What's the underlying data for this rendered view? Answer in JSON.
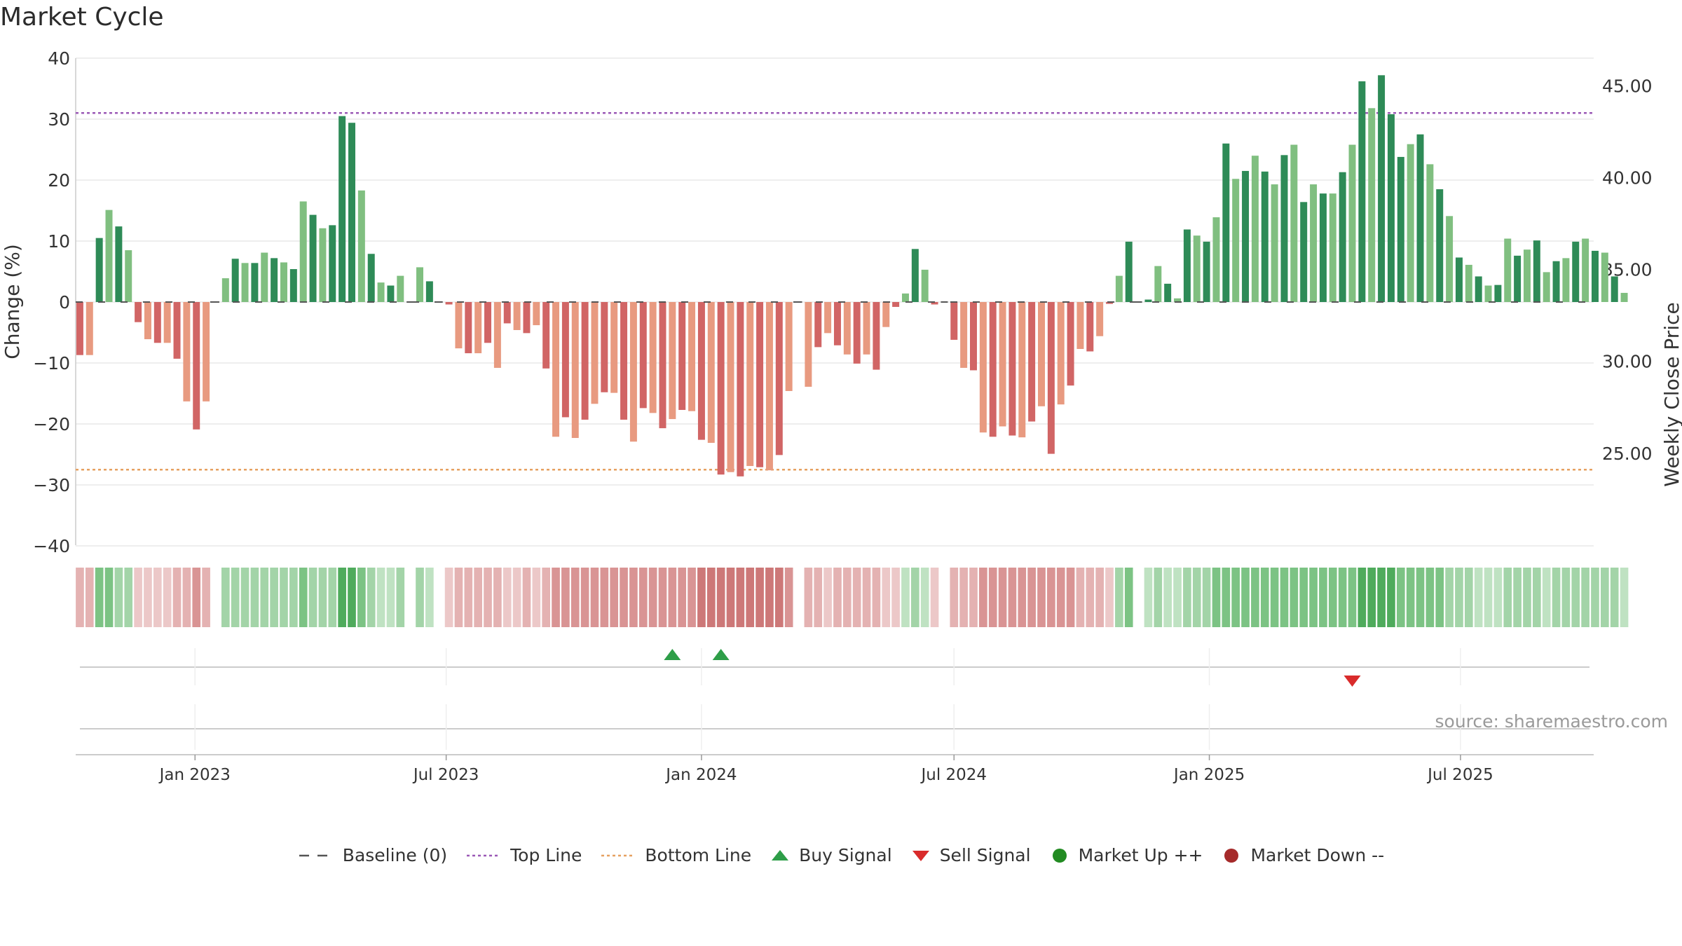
{
  "chart_data": {
    "type": "bar",
    "title": "Market Cycle",
    "source": "source: sharemaestro.com",
    "ylabel": "Change (%)",
    "ylabel_right": "Weekly Close Price",
    "ylim": [
      -40,
      40
    ],
    "yticks": [
      40,
      30,
      20,
      10,
      0,
      -10,
      -20,
      -30,
      -40
    ],
    "ytick_labels": [
      "40",
      "30",
      "20",
      "10",
      "0",
      "−10",
      "−20",
      "−30",
      "−40"
    ],
    "ylim_right": [
      20.0,
      46.5
    ],
    "yticks_right": [
      45.0,
      40.0,
      35.0,
      30.0,
      25.0
    ],
    "ytick_labels_right": [
      "45.00",
      "40.00",
      "35.00",
      "30.00",
      "25.00"
    ],
    "x_range": [
      "2022-10-07",
      "2025-10-05"
    ],
    "xticks": [
      "2023-01-01",
      "2023-07-01",
      "2024-01-01",
      "2024-07-01",
      "2025-01-01",
      "2025-07-01"
    ],
    "xtick_labels": [
      "Jan 2023",
      "Jul 2023",
      "Jan 2024",
      "Jul 2024",
      "Jan 2025",
      "Jul 2025"
    ],
    "start_week": "2022-10-10",
    "top_line": 31,
    "bottom_line": -27.5,
    "values": [
      -8.7,
      -8.7,
      10.5,
      15.1,
      12.4,
      8.5,
      -3.3,
      -6.1,
      -6.7,
      -6.7,
      -9.3,
      -16.3,
      -20.9,
      -16.3,
      0,
      3.9,
      7.1,
      6.4,
      6.4,
      8.1,
      7.2,
      6.5,
      5.4,
      16.5,
      14.3,
      12.1,
      12.6,
      30.5,
      29.4,
      18.3,
      7.9,
      3.2,
      2.7,
      4.3,
      0,
      5.7,
      3.4,
      0,
      -0.4,
      -7.6,
      -8.4,
      -8.4,
      -6.7,
      -10.8,
      -3.5,
      -4.6,
      -5.1,
      -3.8,
      -10.9,
      -22.1,
      -18.9,
      -22.3,
      -19.3,
      -16.7,
      -14.8,
      -14.9,
      -19.3,
      -22.9,
      -17.4,
      -18.2,
      -20.7,
      -19.2,
      -17.7,
      -17.9,
      -22.6,
      -23.1,
      -28.3,
      -27.9,
      -28.6,
      -26.9,
      -27.1,
      -27.6,
      -25.1,
      -14.6,
      0,
      -13.9,
      -7.4,
      -5.1,
      -7.1,
      -8.6,
      -10.1,
      -8.6,
      -11.1,
      -4.1,
      -0.8,
      1.4,
      8.7,
      5.3,
      -0.4,
      0,
      -6.2,
      -10.8,
      -11.2,
      -21.4,
      -22.1,
      -20.4,
      -21.9,
      -22.2,
      -19.6,
      -17.1,
      -24.9,
      -16.8,
      -13.7,
      -7.7,
      -8.1,
      -5.6,
      -0.3,
      4.3,
      9.9,
      0,
      0.4,
      5.9,
      3.0,
      0.6,
      11.9,
      10.9,
      9.9,
      13.9,
      26.0,
      20.2,
      21.5,
      24.0,
      21.4,
      19.3,
      24.1,
      25.8,
      16.4,
      19.3,
      17.8,
      17.8,
      21.3,
      25.8,
      36.2,
      31.8,
      37.2,
      30.8,
      23.8,
      25.9,
      27.5,
      22.6,
      18.5,
      14.1,
      7.3,
      6.1,
      4.2,
      2.7,
      2.8,
      10.4,
      7.6,
      8.6,
      10.1,
      4.9,
      6.7,
      7.2,
      9.9,
      10.4,
      8.4,
      8.1,
      4.2,
      1.5
    ],
    "market_strength": [
      -2,
      -2,
      3,
      3,
      2,
      2,
      -1,
      -1,
      -1,
      -1,
      -2,
      -2,
      -3,
      -2,
      0,
      2,
      2,
      2,
      2,
      2,
      2,
      2,
      2,
      3,
      2,
      2,
      2,
      4,
      4,
      3,
      2,
      1,
      1,
      2,
      0,
      2,
      1,
      0,
      -1,
      -2,
      -2,
      -2,
      -2,
      -2,
      -1,
      -1,
      -2,
      -1,
      -2,
      -3,
      -3,
      -3,
      -3,
      -3,
      -3,
      -3,
      -3,
      -3,
      -3,
      -3,
      -3,
      -3,
      -3,
      -3,
      -4,
      -4,
      -4,
      -4,
      -4,
      -4,
      -4,
      -4,
      -4,
      -3,
      0,
      -2,
      -2,
      -1,
      -2,
      -2,
      -2,
      -2,
      -2,
      -1,
      -1,
      1,
      2,
      1,
      -1,
      0,
      -2,
      -2,
      -2,
      -3,
      -3,
      -3,
      -3,
      -3,
      -3,
      -3,
      -3,
      -3,
      -3,
      -2,
      -2,
      -2,
      -1,
      2,
      3,
      0,
      1,
      2,
      1,
      1,
      2,
      2,
      2,
      3,
      3,
      3,
      3,
      3,
      3,
      3,
      3,
      3,
      3,
      3,
      3,
      3,
      3,
      3,
      4,
      4,
      4,
      4,
      3,
      3,
      3,
      3,
      3,
      2,
      2,
      2,
      1,
      1,
      1,
      2,
      2,
      2,
      2,
      1,
      2,
      2,
      2,
      2,
      2,
      2,
      2,
      1
    ],
    "buy_signals": [
      "2023-12-11",
      "2024-01-15"
    ],
    "sell_signals": [
      "2025-04-14"
    ],
    "series": [
      {
        "name": "Baseline (0)",
        "style": "dashed",
        "color": "#555555"
      },
      {
        "name": "Top Line",
        "style": "dotted",
        "color": "#9b59b6"
      },
      {
        "name": "Bottom Line",
        "style": "dotted",
        "color": "#e6a060"
      },
      {
        "name": "Buy Signal",
        "marker": "triangle-up",
        "color": "#2e9e48"
      },
      {
        "name": "Sell Signal",
        "marker": "triangle-down",
        "color": "#d92b2b"
      },
      {
        "name": "Market Up ++",
        "marker": "circle",
        "color": "#228b22"
      },
      {
        "name": "Market Down --",
        "marker": "circle",
        "color": "#a52a2a"
      }
    ],
    "colors": {
      "up_strong": "#2e8b57",
      "up_light": "#80bf80",
      "down_strong": "#d16565",
      "down_light": "#e89a80",
      "grid": "#e8e8e8",
      "axis": "#cccccc"
    },
    "legend_position": "bottom",
    "grid": true
  }
}
